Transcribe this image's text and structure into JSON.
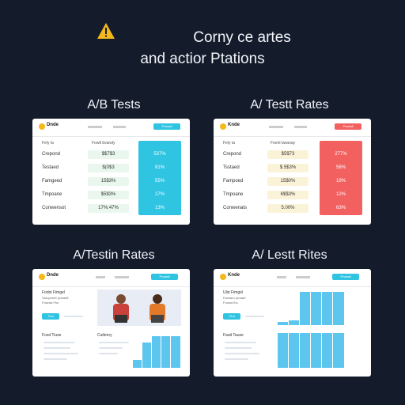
{
  "header": {
    "line1": "Corny ce artes",
    "line2": "and actior Ptations"
  },
  "sections": {
    "top_left": "A/B Tests",
    "top_right": "A/ Testt Rates",
    "bottom_left": "A/Testin Rates",
    "bottom_right": "A/ Lestt Rites"
  },
  "cards": {
    "tl": {
      "logo": "Dnde",
      "button": "Prwaall",
      "head1": "Fely la",
      "head2": "Fowtl bvandy",
      "rows": [
        {
          "label": "Crepond",
          "val": "$$7$3",
          "pct": "537%"
        },
        {
          "label": "Testaed",
          "val": "$(0$3",
          "pct": "81%"
        },
        {
          "label": "Famgeed",
          "val": "15$3%",
          "pct": "55%"
        },
        {
          "label": "Tmpoane",
          "val": "$5$3%",
          "pct": "27%"
        },
        {
          "label": "Conwensot",
          "val": "17%:47%",
          "pct": "13%"
        }
      ]
    },
    "tr": {
      "logo": "Knde",
      "button": "Prwaall",
      "head1": "Fely ta",
      "head2": "Foenl bwanay",
      "rows": [
        {
          "label": "Crepond",
          "val": "$5$73",
          "pct": "277%"
        },
        {
          "label": "Tsstaed",
          "val": "$.5$3%",
          "pct": "58%"
        },
        {
          "label": "Fampoed",
          "val": "15$0%",
          "pct": "19%"
        },
        {
          "label": "Tmpoane",
          "val": "6$$3%",
          "pct": "12%"
        },
        {
          "label": "Conwenats",
          "val": "5.00%",
          "pct": "63%"
        }
      ]
    },
    "bl": {
      "logo": "Dnde",
      "button": "Prwaall",
      "title": "Fodst Fimgel",
      "sub1": "Saroproeb praraeff",
      "sub2": "Fowrad Fhu",
      "cta": "Tiua",
      "s2_left": "Fosd Tiuse",
      "s2_right": "Cutlenry"
    },
    "br": {
      "logo": "Knde",
      "button": "Prwaall",
      "title": "Ulst Fimgel",
      "sub1": "Farwaro proraef",
      "sub2": "Foowd Ihu",
      "cta": "Tiua",
      "s2_left": "Faait Tause"
    }
  },
  "colors": {
    "background": "#141c2c",
    "accent_blue": "#2ec4e2",
    "accent_red": "#f26060",
    "warning": "#f5b81b"
  }
}
